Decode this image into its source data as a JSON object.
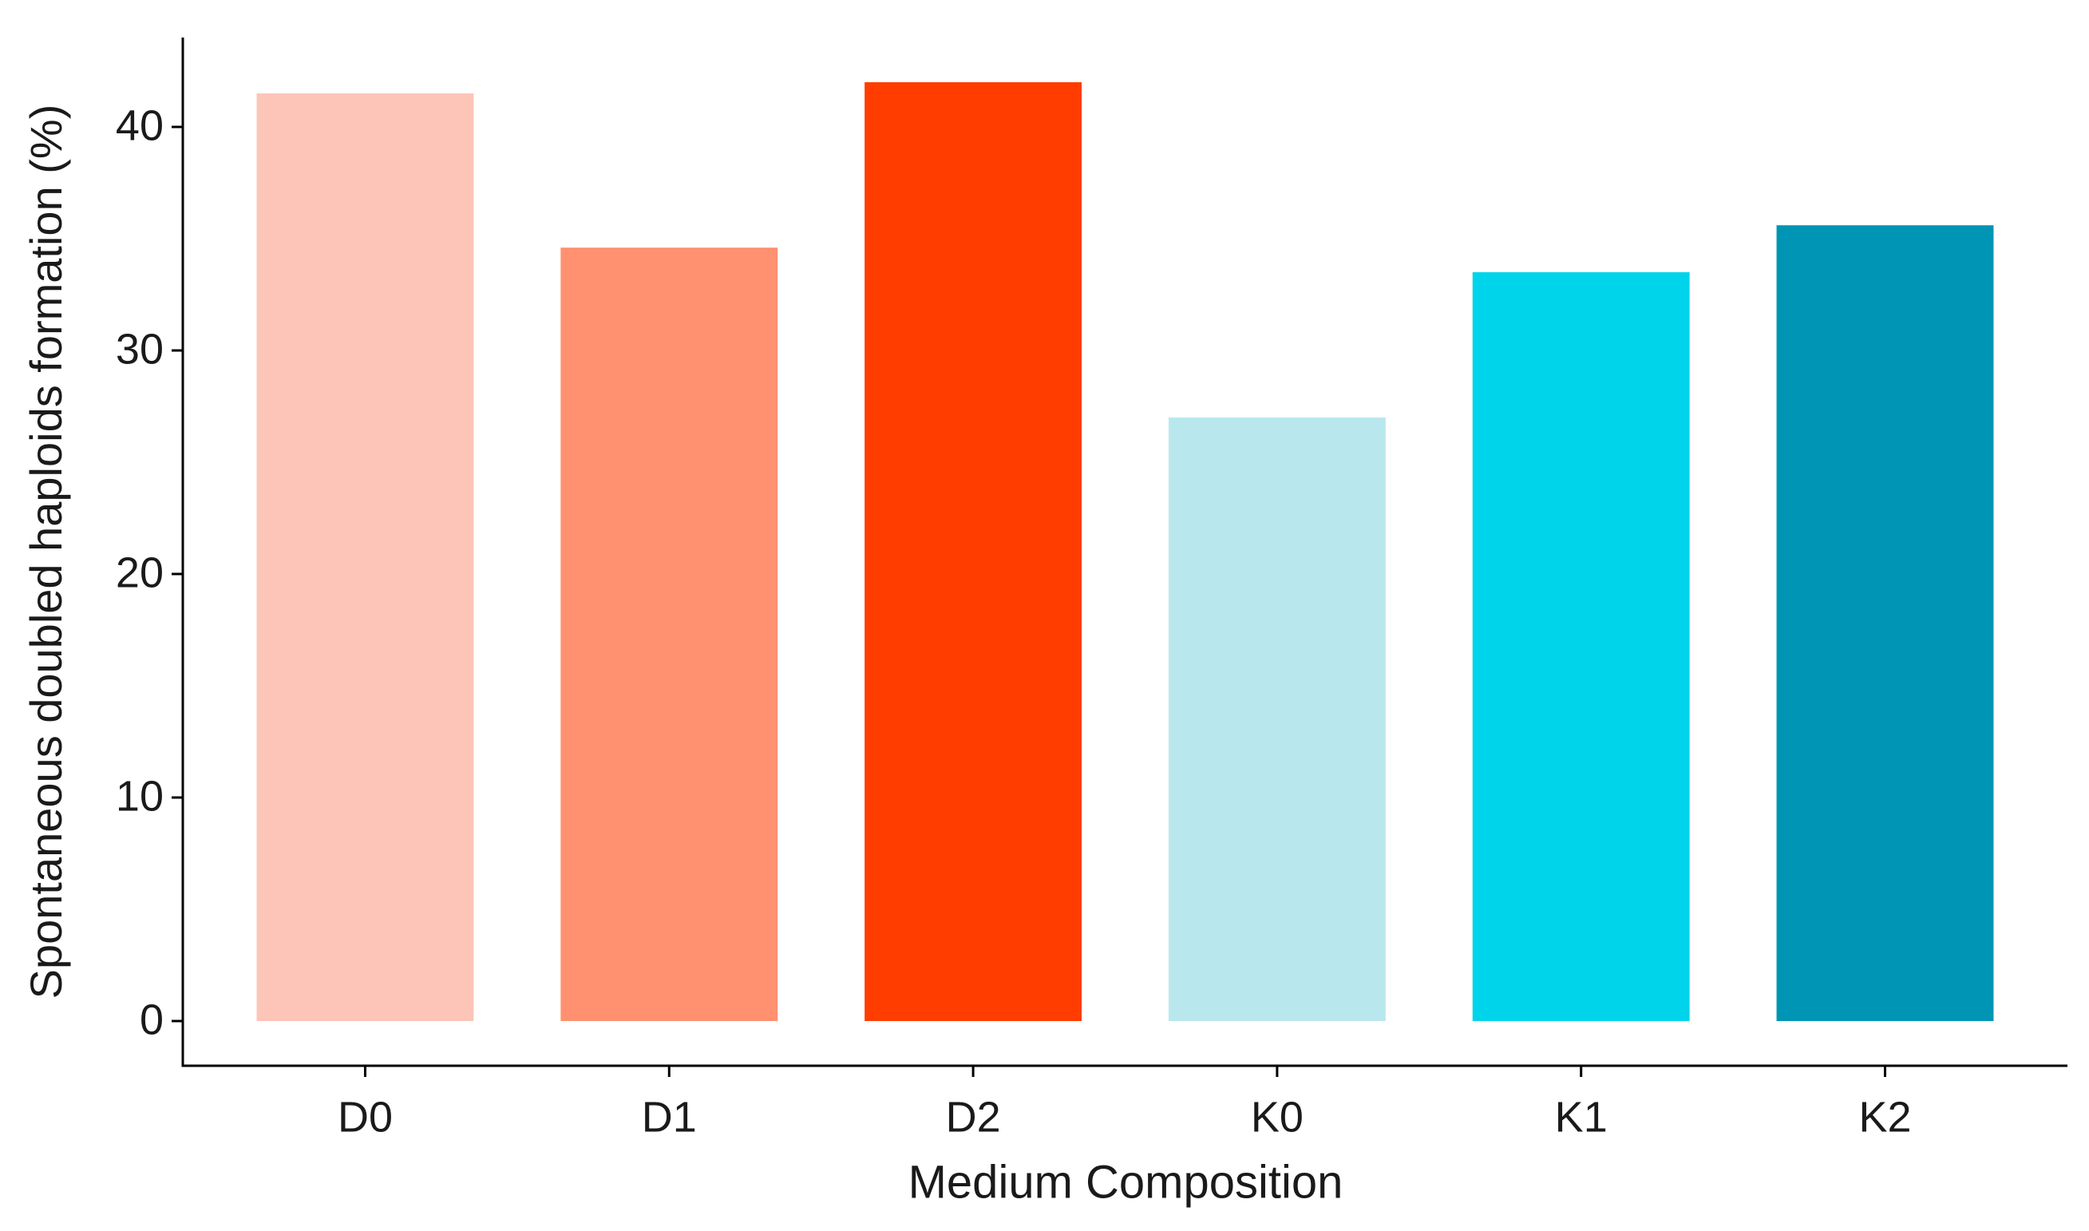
{
  "chart_data": {
    "type": "bar",
    "x_label": "Medium Composition",
    "y_label": "Spontaneous doubled haploids formation (%)",
    "categories": [
      "D0",
      "D1",
      "D2",
      "K0",
      "K1",
      "K2"
    ],
    "values": [
      41.5,
      34.6,
      42.0,
      27.0,
      33.5,
      35.6
    ],
    "colors": [
      "#fcc5b8",
      "#ff9070",
      "#ff3d00",
      "#b8e8ee",
      "#00d4ea",
      "#0095b4"
    ],
    "ylim": [
      -2,
      44
    ],
    "yticks": [
      0,
      10,
      20,
      30,
      40
    ],
    "grid": false
  }
}
